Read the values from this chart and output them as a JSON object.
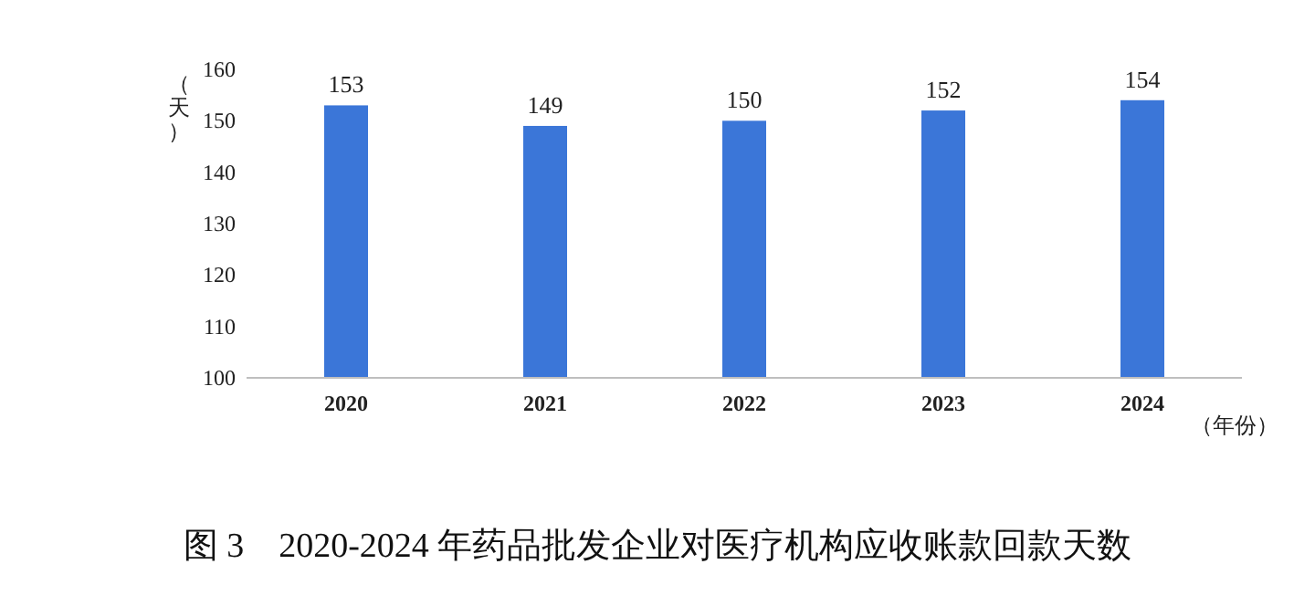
{
  "chart_data": {
    "type": "bar",
    "title": "图 3　2020-2024 年药品批发企业对医疗机构应收账款回款天数",
    "ylabel": "（天）",
    "xlabel": "（年份）",
    "categories": [
      "2020",
      "2021",
      "2022",
      "2023",
      "2024"
    ],
    "values": [
      153,
      149,
      150,
      152,
      154
    ],
    "color": "#3b76d8",
    "ylim": [
      100,
      160
    ],
    "yticks": [
      100,
      110,
      120,
      130,
      140,
      150,
      160
    ],
    "data_labels": true
  }
}
